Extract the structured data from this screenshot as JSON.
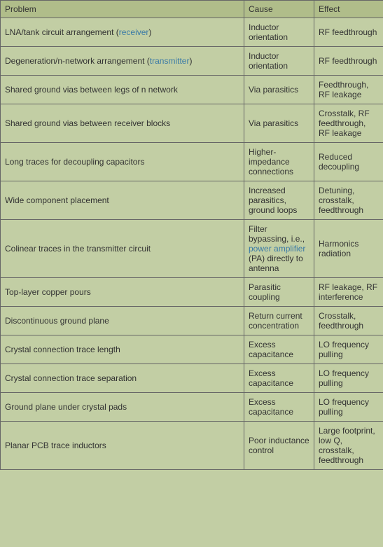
{
  "table": {
    "headers": {
      "problem": "Problem",
      "cause": "Cause",
      "effect": "Effect"
    },
    "link_color": "#3a7aa6",
    "rows": [
      {
        "problem": {
          "parts": [
            "LNA/tank circuit arrangement (",
            {
              "link": "receiver"
            },
            ")"
          ]
        },
        "cause": "Inductor orientation",
        "effect": "RF feedthrough"
      },
      {
        "problem": {
          "parts": [
            "Degeneration/n-network arrangement (",
            {
              "link": "transmitter"
            },
            ")"
          ]
        },
        "cause": "Inductor orientation",
        "effect": "RF feedthrough"
      },
      {
        "problem": {
          "parts": [
            "Shared ground vias between legs of n network"
          ]
        },
        "cause": "Via parasitics",
        "effect": "Feedthrough, RF leakage"
      },
      {
        "problem": {
          "parts": [
            "Shared ground vias between receiver blocks"
          ]
        },
        "cause": "Via parasitics",
        "effect": "Crosstalk, RF feedthrough, RF leakage"
      },
      {
        "problem": {
          "parts": [
            "Long traces for decoupling capacitors"
          ]
        },
        "cause": "Higher-impedance connections",
        "effect": "Reduced decoupling"
      },
      {
        "problem": {
          "parts": [
            "Wide component placement"
          ]
        },
        "cause": "Increased parasitics, ground loops",
        "effect": "Detuning, crosstalk, feedthrough"
      },
      {
        "problem": {
          "parts": [
            "Colinear traces in the transmitter circuit"
          ]
        },
        "cause_parts": [
          "Filter bypassing, i.e., ",
          {
            "link": "power amplifier"
          },
          " (PA) directly to antenna"
        ],
        "effect": "Harmonics radiation"
      },
      {
        "problem": {
          "parts": [
            "Top-layer copper pours"
          ]
        },
        "cause": "Parasitic coupling",
        "effect": "RF leakage, RF interference"
      },
      {
        "problem": {
          "parts": [
            "Discontinuous ground plane"
          ]
        },
        "cause": "Return current concentration",
        "effect": "Crosstalk, feedthrough"
      },
      {
        "problem": {
          "parts": [
            "Crystal connection trace length"
          ]
        },
        "cause": "Excess capacitance",
        "effect": "LO frequency pulling"
      },
      {
        "problem": {
          "parts": [
            "Crystal connection trace separation"
          ]
        },
        "cause": "Excess capacitance",
        "effect": "LO frequency pulling"
      },
      {
        "problem": {
          "parts": [
            "Ground plane under crystal pads"
          ]
        },
        "cause": "Excess capacitance",
        "effect": "LO frequency pulling"
      },
      {
        "problem": {
          "parts": [
            "Planar PCB trace inductors"
          ]
        },
        "cause": "Poor inductance control",
        "effect": "Large footprint, low Q, crosstalk, feedthrough"
      }
    ]
  }
}
